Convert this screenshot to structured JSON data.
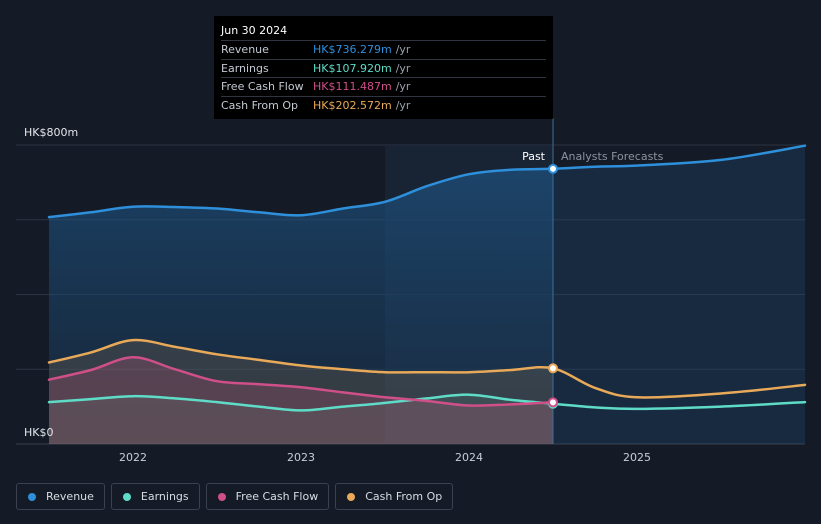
{
  "chart_data": {
    "type": "area",
    "title": "",
    "y_axis": {
      "top_label": "HK$800m",
      "bottom_label": "HK$0",
      "ylim": [
        0,
        800
      ],
      "gridlines": [
        0,
        200,
        400,
        600,
        800
      ]
    },
    "x_axis": {
      "ticks": [
        "2022",
        "2023",
        "2024",
        "2025"
      ],
      "xlim": [
        2021.5,
        2026.0
      ]
    },
    "divider": {
      "x": 2024.5,
      "past_label": "Past",
      "forecast_label": "Analysts Forecasts"
    },
    "series": [
      {
        "name": "Revenue",
        "color": "#2e8fdb",
        "points": [
          [
            2021.5,
            607
          ],
          [
            2021.75,
            620
          ],
          [
            2022.0,
            635
          ],
          [
            2022.25,
            634
          ],
          [
            2022.5,
            630
          ],
          [
            2022.75,
            620
          ],
          [
            2023.0,
            612
          ],
          [
            2023.25,
            630
          ],
          [
            2023.5,
            648
          ],
          [
            2023.75,
            690
          ],
          [
            2024.0,
            722
          ],
          [
            2024.25,
            734
          ],
          [
            2024.5,
            736.279
          ],
          [
            2024.75,
            742
          ],
          [
            2025.0,
            745
          ],
          [
            2025.5,
            760
          ],
          [
            2026.0,
            798
          ]
        ]
      },
      {
        "name": "Earnings",
        "color": "#5fdcc8",
        "points": [
          [
            2021.5,
            112
          ],
          [
            2021.75,
            120
          ],
          [
            2022.0,
            128
          ],
          [
            2022.25,
            122
          ],
          [
            2022.5,
            112
          ],
          [
            2022.75,
            100
          ],
          [
            2023.0,
            90
          ],
          [
            2023.25,
            100
          ],
          [
            2023.5,
            110
          ],
          [
            2023.75,
            122
          ],
          [
            2024.0,
            132
          ],
          [
            2024.25,
            118
          ],
          [
            2024.5,
            107.92
          ],
          [
            2024.75,
            98
          ],
          [
            2025.0,
            94
          ],
          [
            2025.5,
            100
          ],
          [
            2026.0,
            112
          ]
        ]
      },
      {
        "name": "Free Cash Flow",
        "color": "#cf4f89",
        "points": [
          [
            2021.5,
            172
          ],
          [
            2021.75,
            198
          ],
          [
            2022.0,
            232
          ],
          [
            2022.25,
            200
          ],
          [
            2022.5,
            168
          ],
          [
            2022.75,
            160
          ],
          [
            2023.0,
            152
          ],
          [
            2023.25,
            138
          ],
          [
            2023.5,
            125
          ],
          [
            2023.75,
            115
          ],
          [
            2024.0,
            103
          ],
          [
            2024.25,
            106
          ],
          [
            2024.5,
            111.487
          ]
        ]
      },
      {
        "name": "Cash From Op",
        "color": "#e8a959",
        "points": [
          [
            2021.5,
            218
          ],
          [
            2021.75,
            245
          ],
          [
            2022.0,
            278
          ],
          [
            2022.25,
            260
          ],
          [
            2022.5,
            240
          ],
          [
            2022.75,
            225
          ],
          [
            2023.0,
            210
          ],
          [
            2023.25,
            200
          ],
          [
            2023.5,
            192
          ],
          [
            2023.75,
            192
          ],
          [
            2024.0,
            192
          ],
          [
            2024.25,
            198
          ],
          [
            2024.5,
            202.572
          ],
          [
            2024.75,
            150
          ],
          [
            2025.0,
            125
          ],
          [
            2025.5,
            135
          ],
          [
            2026.0,
            158
          ]
        ]
      }
    ]
  },
  "tooltip": {
    "date": "Jun 30 2024",
    "rows": [
      {
        "label": "Revenue",
        "value": "HK$736.279m",
        "unit": "/yr",
        "color": "#2e8fdb"
      },
      {
        "label": "Earnings",
        "value": "HK$107.920m",
        "unit": "/yr",
        "color": "#5fdcc8"
      },
      {
        "label": "Free Cash Flow",
        "value": "HK$111.487m",
        "unit": "/yr",
        "color": "#cf4f89"
      },
      {
        "label": "Cash From Op",
        "value": "HK$202.572m",
        "unit": "/yr",
        "color": "#e8a959"
      }
    ]
  },
  "legend": [
    {
      "label": "Revenue",
      "color": "#2e8fdb"
    },
    {
      "label": "Earnings",
      "color": "#5fdcc8"
    },
    {
      "label": "Free Cash Flow",
      "color": "#cf4f89"
    },
    {
      "label": "Cash From Op",
      "color": "#e8a959"
    }
  ]
}
